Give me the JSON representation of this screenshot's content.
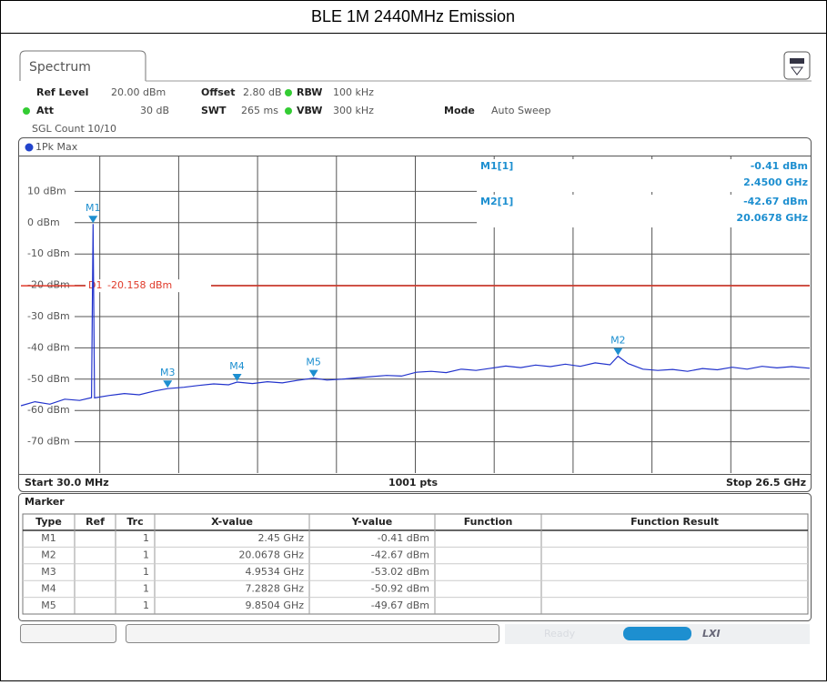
{
  "page_title": "BLE 1M 2440MHz Emission",
  "tab": "Spectrum",
  "settings": {
    "ref_level": {
      "label": "Ref Level",
      "value": "20.00 dBm"
    },
    "offset": {
      "label": "Offset",
      "value": "2.80 dB"
    },
    "rbw": {
      "label": "RBW",
      "value": "100 kHz"
    },
    "att": {
      "label": "Att",
      "value": "30 dB"
    },
    "swt": {
      "label": "SWT",
      "value": "265 ms"
    },
    "vbw": {
      "label": "VBW",
      "value": "300 kHz"
    },
    "mode": {
      "label": "Mode",
      "value": "Auto Sweep"
    },
    "count": "SGL Count 10/10"
  },
  "trace_label": "1Pk Max",
  "chart_data": {
    "type": "line",
    "xlim": [
      0.03,
      26.5
    ],
    "ylim": [
      -80,
      20
    ],
    "yticks": [
      {
        "value": 10,
        "label": "10 dBm"
      },
      {
        "value": 0,
        "label": "0 dBm"
      },
      {
        "value": -10,
        "label": "-10 dBm"
      },
      {
        "value": -20,
        "label": "-20 dBm"
      },
      {
        "value": -30,
        "label": "-30 dBm"
      },
      {
        "value": -40,
        "label": "-40 dBm"
      },
      {
        "value": -50,
        "label": "-50 dBm"
      },
      {
        "value": -60,
        "label": "-60 dBm"
      },
      {
        "value": -70,
        "label": "-70 dBm"
      }
    ],
    "grid": true,
    "x": [
      0.03,
      0.5,
      1.0,
      1.5,
      2.0,
      2.4,
      2.45,
      2.5,
      3.0,
      3.5,
      4.0,
      4.5,
      4.9534,
      5.5,
      6.0,
      6.5,
      7.0,
      7.2828,
      7.8,
      8.3,
      8.8,
      9.3,
      9.8504,
      10.3,
      10.8,
      11.3,
      11.8,
      12.3,
      12.8,
      13.3,
      13.8,
      14.3,
      14.8,
      15.3,
      15.8,
      16.3,
      16.8,
      17.3,
      17.8,
      18.3,
      18.8,
      19.3,
      19.8,
      20.0678,
      20.4,
      20.9,
      21.4,
      21.9,
      22.4,
      22.9,
      23.4,
      23.9,
      24.4,
      24.9,
      25.4,
      25.9,
      26.5
    ],
    "series": [
      {
        "name": "1Pk Max",
        "color": "#2233cc",
        "values": [
          -58.5,
          -57.2,
          -58.0,
          -56.4,
          -56.8,
          -55.9,
          -0.41,
          -56.0,
          -55.2,
          -54.6,
          -55.0,
          -53.8,
          -53.02,
          -52.6,
          -52.0,
          -51.5,
          -51.8,
          -50.92,
          -51.4,
          -50.8,
          -51.2,
          -50.4,
          -49.67,
          -50.3,
          -50.0,
          -49.6,
          -49.2,
          -48.8,
          -49.0,
          -47.8,
          -47.5,
          -47.9,
          -46.8,
          -47.2,
          -46.5,
          -45.8,
          -46.3,
          -45.5,
          -46.0,
          -45.2,
          -45.9,
          -44.8,
          -45.4,
          -42.67,
          -45.0,
          -46.8,
          -47.2,
          -46.9,
          -47.5,
          -46.6,
          -47.0,
          -46.2,
          -46.8,
          -45.9,
          -46.4,
          -46.0,
          -46.5
        ]
      }
    ],
    "display_line": {
      "name": "D1",
      "value": -20.158,
      "value_label": "-20.158 dBm",
      "color": "#e03a2a"
    },
    "markers": [
      {
        "name": "M1",
        "x": 2.45,
        "y": -0.41
      },
      {
        "name": "M2",
        "x": 20.0678,
        "y": -42.67
      },
      {
        "name": "M3",
        "x": 4.9534,
        "y": -53.02
      },
      {
        "name": "M4",
        "x": 7.2828,
        "y": -50.92
      },
      {
        "name": "M5",
        "x": 9.8504,
        "y": -49.67
      }
    ],
    "marker_color": "#1d8fd0",
    "marker_info": [
      {
        "label": "M1[1]",
        "lines": [
          "-0.41 dBm",
          "2.4500 GHz"
        ]
      },
      {
        "label": "M2[1]",
        "lines": [
          "-42.67 dBm",
          "20.0678 GHz"
        ]
      }
    ],
    "start_label": "Start 30.0 MHz",
    "points_label": "1001 pts",
    "stop_label": "Stop 26.5 GHz"
  },
  "table": {
    "title": "Marker",
    "headers": [
      "Type",
      "Ref",
      "Trc",
      "X-value",
      "Y-value",
      "Function",
      "Function Result"
    ],
    "rows": [
      [
        "M1",
        null,
        "1",
        "2.45 GHz",
        "-0.41 dBm",
        null,
        null
      ],
      [
        "M2",
        null,
        "1",
        "20.0678 GHz",
        "-42.67 dBm",
        null,
        null
      ],
      [
        "M3",
        null,
        "1",
        "4.9534 GHz",
        "-53.02 dBm",
        null,
        null
      ],
      [
        "M4",
        null,
        "1",
        "7.2828 GHz",
        "-50.92 dBm",
        null,
        null
      ],
      [
        "M5",
        null,
        "1",
        "9.8504 GHz",
        "-49.67 dBm",
        null,
        null
      ]
    ]
  },
  "status": "Ready",
  "lxi": "LXI"
}
